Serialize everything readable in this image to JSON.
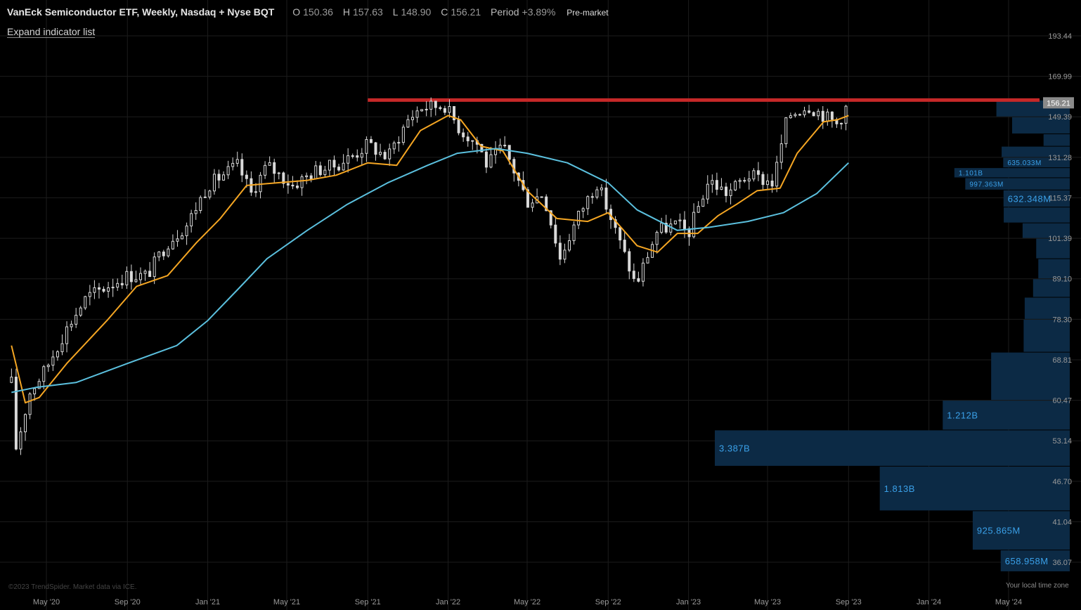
{
  "header": {
    "title": "VanEck Semiconductor ETF, Weekly, Nasdaq + Nyse BQT",
    "open_label": "O",
    "open": "150.36",
    "high_label": "H",
    "high": "157.63",
    "low_label": "L",
    "low": "148.90",
    "close_label": "C",
    "close": "156.21",
    "period_label": "Period",
    "period": "+3.89%",
    "session": "Pre-market"
  },
  "controls": {
    "expand_label": "Expand indicator list"
  },
  "footer": {
    "copyright": "©2023 TrendSpider. Market data via ICE.",
    "timezone": "Your local time zone"
  },
  "colors": {
    "background": "#000000",
    "grid": "#1c1c1c",
    "candle": "#d9d9d9",
    "ema_fast": "#f5a623",
    "ema_slow": "#5bc0de",
    "resistance": "#c62828",
    "volume_bar": "#0c2a45",
    "volume_label": "#3aa0e8",
    "last_price_tag": "#8a8a8a"
  },
  "chart_data": {
    "type": "candlestick",
    "interval": "weekly",
    "x_range": [
      "2020-03-09",
      "2024-06-17"
    ],
    "y_ticks": [
      "193.44",
      "169.99",
      "149.39",
      "131.28",
      "115.37",
      "101.39",
      "89.10",
      "78.30",
      "68.81",
      "60.47",
      "53.14",
      "46.70",
      "41.04",
      "36.07"
    ],
    "y_tick_values": [
      193.44,
      169.99,
      149.39,
      131.28,
      115.37,
      101.39,
      89.1,
      78.3,
      68.81,
      60.47,
      53.14,
      46.7,
      41.04,
      36.07
    ],
    "y_scale": "log",
    "x_tick_labels": [
      "May '20",
      "Sep '20",
      "Jan '21",
      "May '21",
      "Sep '21",
      "Jan '22",
      "May '22",
      "Sep '22",
      "Jan '23",
      "May '23",
      "Sep '23",
      "Jan '24",
      "May '24"
    ],
    "x_tick_dates": [
      "2020-05-01",
      "2020-09-01",
      "2021-01-01",
      "2021-05-01",
      "2021-09-01",
      "2022-01-01",
      "2022-05-01",
      "2022-09-01",
      "2023-01-01",
      "2023-05-01",
      "2023-09-01",
      "2024-01-01",
      "2024-05-01"
    ],
    "last_price": "156.21",
    "last_price_value": 156.21,
    "resistance": {
      "price": 157.6,
      "start": "2021-09-01",
      "end": "2024-06-17"
    },
    "price_path": [
      {
        "date": "2020-03-09",
        "close": 64
      },
      {
        "date": "2020-03-16",
        "close": 52
      },
      {
        "date": "2020-03-23",
        "close": 55
      },
      {
        "date": "2020-04-06",
        "close": 62
      },
      {
        "date": "2020-05-01",
        "close": 67
      },
      {
        "date": "2020-06-01",
        "close": 76
      },
      {
        "date": "2020-07-01",
        "close": 84
      },
      {
        "date": "2020-08-01",
        "close": 87
      },
      {
        "date": "2020-09-01",
        "close": 90
      },
      {
        "date": "2020-10-01",
        "close": 90
      },
      {
        "date": "2020-11-01",
        "close": 100
      },
      {
        "date": "2020-12-01",
        "close": 106
      },
      {
        "date": "2021-01-01",
        "close": 120
      },
      {
        "date": "2021-02-15",
        "close": 128
      },
      {
        "date": "2021-03-08",
        "close": 117
      },
      {
        "date": "2021-04-01",
        "close": 128
      },
      {
        "date": "2021-05-10",
        "close": 120
      },
      {
        "date": "2021-06-15",
        "close": 126
      },
      {
        "date": "2021-07-15",
        "close": 128
      },
      {
        "date": "2021-08-15",
        "close": 133
      },
      {
        "date": "2021-09-01",
        "close": 137
      },
      {
        "date": "2021-10-01",
        "close": 131
      },
      {
        "date": "2021-11-01",
        "close": 148
      },
      {
        "date": "2021-11-20",
        "close": 154
      },
      {
        "date": "2021-12-27",
        "close": 155
      },
      {
        "date": "2022-01-20",
        "close": 143
      },
      {
        "date": "2022-02-15",
        "close": 137
      },
      {
        "date": "2022-03-01",
        "close": 128
      },
      {
        "date": "2022-03-25",
        "close": 136
      },
      {
        "date": "2022-05-01",
        "close": 114
      },
      {
        "date": "2022-05-25",
        "close": 117
      },
      {
        "date": "2022-06-20",
        "close": 95
      },
      {
        "date": "2022-07-20",
        "close": 110
      },
      {
        "date": "2022-08-15",
        "close": 121
      },
      {
        "date": "2022-09-15",
        "close": 102
      },
      {
        "date": "2022-10-13",
        "close": 87
      },
      {
        "date": "2022-11-15",
        "close": 104
      },
      {
        "date": "2022-12-15",
        "close": 106
      },
      {
        "date": "2023-01-01",
        "close": 103
      },
      {
        "date": "2023-02-01",
        "close": 122
      },
      {
        "date": "2023-03-01",
        "close": 117
      },
      {
        "date": "2023-04-01",
        "close": 124
      },
      {
        "date": "2023-05-10",
        "close": 121
      },
      {
        "date": "2023-06-01",
        "close": 150
      },
      {
        "date": "2023-07-01",
        "close": 155
      },
      {
        "date": "2023-08-15",
        "close": 146
      },
      {
        "date": "2023-09-01",
        "close": 156.21
      }
    ],
    "series": [
      {
        "kind": "ema_fast",
        "points": [
          {
            "date": "2020-03-09",
            "value": 72
          },
          {
            "date": "2020-03-30",
            "value": 60
          },
          {
            "date": "2020-04-20",
            "value": 61
          },
          {
            "date": "2020-06-01",
            "value": 68
          },
          {
            "date": "2020-08-01",
            "value": 78
          },
          {
            "date": "2020-09-15",
            "value": 87
          },
          {
            "date": "2020-11-01",
            "value": 90
          },
          {
            "date": "2020-12-15",
            "value": 100
          },
          {
            "date": "2021-01-20",
            "value": 108
          },
          {
            "date": "2021-03-01",
            "value": 120
          },
          {
            "date": "2021-04-15",
            "value": 121
          },
          {
            "date": "2021-06-01",
            "value": 122
          },
          {
            "date": "2021-07-15",
            "value": 124
          },
          {
            "date": "2021-09-01",
            "value": 129
          },
          {
            "date": "2021-10-15",
            "value": 128
          },
          {
            "date": "2021-11-20",
            "value": 143
          },
          {
            "date": "2022-01-01",
            "value": 150
          },
          {
            "date": "2022-01-20",
            "value": 148
          },
          {
            "date": "2022-02-20",
            "value": 136
          },
          {
            "date": "2022-03-25",
            "value": 134
          },
          {
            "date": "2022-05-01",
            "value": 118
          },
          {
            "date": "2022-06-15",
            "value": 108
          },
          {
            "date": "2022-08-01",
            "value": 107
          },
          {
            "date": "2022-09-01",
            "value": 110
          },
          {
            "date": "2022-10-15",
            "value": 99
          },
          {
            "date": "2022-11-15",
            "value": 97
          },
          {
            "date": "2022-12-15",
            "value": 103
          },
          {
            "date": "2023-01-15",
            "value": 103
          },
          {
            "date": "2023-02-15",
            "value": 109
          },
          {
            "date": "2023-03-15",
            "value": 113
          },
          {
            "date": "2023-04-15",
            "value": 118
          },
          {
            "date": "2023-05-20",
            "value": 119
          },
          {
            "date": "2023-06-15",
            "value": 133
          },
          {
            "date": "2023-07-25",
            "value": 147
          },
          {
            "date": "2023-08-15",
            "value": 148
          },
          {
            "date": "2023-09-01",
            "value": 150
          }
        ]
      },
      {
        "kind": "ema_slow",
        "points": [
          {
            "date": "2020-03-09",
            "value": 62
          },
          {
            "date": "2020-04-15",
            "value": 63
          },
          {
            "date": "2020-06-15",
            "value": 64
          },
          {
            "date": "2020-09-01",
            "value": 68
          },
          {
            "date": "2020-11-15",
            "value": 72
          },
          {
            "date": "2021-01-01",
            "value": 78
          },
          {
            "date": "2021-02-15",
            "value": 86
          },
          {
            "date": "2021-04-01",
            "value": 95
          },
          {
            "date": "2021-06-01",
            "value": 104
          },
          {
            "date": "2021-08-01",
            "value": 113
          },
          {
            "date": "2021-10-01",
            "value": 121
          },
          {
            "date": "2021-12-01",
            "value": 128
          },
          {
            "date": "2022-01-15",
            "value": 133
          },
          {
            "date": "2022-03-15",
            "value": 135
          },
          {
            "date": "2022-05-01",
            "value": 133
          },
          {
            "date": "2022-07-01",
            "value": 129
          },
          {
            "date": "2022-09-01",
            "value": 121
          },
          {
            "date": "2022-10-15",
            "value": 111
          },
          {
            "date": "2022-12-15",
            "value": 104
          },
          {
            "date": "2023-02-01",
            "value": 105
          },
          {
            "date": "2023-04-01",
            "value": 107
          },
          {
            "date": "2023-05-25",
            "value": 110
          },
          {
            "date": "2023-07-15",
            "value": 117
          },
          {
            "date": "2023-09-01",
            "value": 129
          }
        ]
      }
    ],
    "volume_profile": [
      {
        "price_low": 149.39,
        "price_high": 157.6,
        "value": 0.7
      },
      {
        "price_low": 141.5,
        "price_high": 149.39,
        "value": 0.55
      },
      {
        "price_low": 136.0,
        "price_high": 141.5,
        "value": 0.25
      },
      {
        "price_low": 131.28,
        "price_high": 136.0,
        "value": 0.65
      },
      {
        "price_low": 127.0,
        "price_high": 131.28,
        "label": "635.033M",
        "value": 0.635
      },
      {
        "price_low": 123.0,
        "price_high": 127.0,
        "label": "1.101B",
        "value": 1.101
      },
      {
        "price_low": 118.3,
        "price_high": 123.0,
        "label": "997.363M",
        "value": 0.997
      },
      {
        "price_low": 112.0,
        "price_high": 118.3,
        "label": "632.348M",
        "value": 0.632
      },
      {
        "price_low": 106.5,
        "price_high": 112.0,
        "value": 0.63
      },
      {
        "price_low": 101.39,
        "price_high": 106.5,
        "value": 0.45
      },
      {
        "price_low": 95.0,
        "price_high": 101.39,
        "value": 0.32
      },
      {
        "price_low": 89.1,
        "price_high": 95.0,
        "value": 0.3
      },
      {
        "price_low": 84.0,
        "price_high": 89.1,
        "value": 0.35
      },
      {
        "price_low": 78.3,
        "price_high": 84.0,
        "value": 0.43
      },
      {
        "price_low": 70.5,
        "price_high": 78.3,
        "value": 0.44
      },
      {
        "price_low": 60.47,
        "price_high": 70.5,
        "value": 0.75
      },
      {
        "price_low": 55.0,
        "price_high": 60.47,
        "label": "1.212B",
        "value": 1.212
      },
      {
        "price_low": 49.0,
        "price_high": 55.0,
        "label": "3.387B",
        "value": 3.387
      },
      {
        "price_low": 42.5,
        "price_high": 49.0,
        "label": "1.813B",
        "value": 1.813
      },
      {
        "price_low": 37.5,
        "price_high": 42.5,
        "label": "925.865M",
        "value": 0.926
      },
      {
        "price_low": 35.0,
        "price_high": 37.5,
        "label": "658.958M",
        "value": 0.659
      }
    ]
  }
}
